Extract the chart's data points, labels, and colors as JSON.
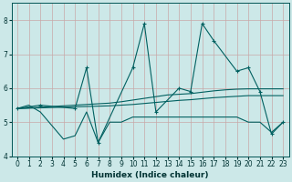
{
  "xlabel": "Humidex (Indice chaleur)",
  "bg_color": "#cce8e8",
  "grid_color": "#c8a8a8",
  "line_color": "#006060",
  "xlim": [
    -0.5,
    23.5
  ],
  "ylim": [
    4.0,
    8.5
  ],
  "yticks": [
    4,
    5,
    6,
    7,
    8
  ],
  "xticks": [
    0,
    1,
    2,
    3,
    4,
    5,
    6,
    7,
    8,
    9,
    10,
    11,
    12,
    13,
    14,
    15,
    16,
    17,
    18,
    19,
    20,
    21,
    22,
    23
  ],
  "series": {
    "line_spiky_x": [
      0,
      1,
      2,
      3,
      4,
      5,
      6,
      7,
      8,
      9,
      10,
      11,
      12,
      13,
      14,
      15,
      16,
      17,
      18,
      19,
      20,
      21,
      22,
      23
    ],
    "line_spiky_y": [
      5.4,
      5.5,
      5.3,
      4.9,
      4.5,
      4.6,
      5.3,
      4.4,
      5.0,
      5.0,
      5.15,
      5.15,
      5.15,
      5.15,
      5.15,
      5.15,
      5.15,
      5.15,
      5.15,
      5.15,
      5.0,
      5.0,
      4.7,
      5.0
    ],
    "line_trend1_x": [
      0,
      1,
      2,
      3,
      4,
      5,
      6,
      7,
      8,
      9,
      10,
      11,
      12,
      13,
      14,
      15,
      16,
      17,
      18,
      19,
      20,
      21,
      22,
      23
    ],
    "line_trend1_y": [
      5.4,
      5.42,
      5.44,
      5.46,
      5.48,
      5.5,
      5.52,
      5.54,
      5.56,
      5.6,
      5.65,
      5.7,
      5.75,
      5.8,
      5.82,
      5.84,
      5.88,
      5.92,
      5.95,
      5.97,
      5.98,
      5.98,
      5.98,
      5.98
    ],
    "line_trend2_x": [
      0,
      1,
      2,
      3,
      4,
      5,
      6,
      7,
      8,
      9,
      10,
      11,
      12,
      13,
      14,
      15,
      16,
      17,
      18,
      19,
      20,
      21,
      22,
      23
    ],
    "line_trend2_y": [
      5.4,
      5.41,
      5.42,
      5.43,
      5.44,
      5.45,
      5.46,
      5.47,
      5.48,
      5.5,
      5.52,
      5.55,
      5.58,
      5.61,
      5.64,
      5.66,
      5.69,
      5.72,
      5.74,
      5.76,
      5.78,
      5.78,
      5.78,
      5.78
    ],
    "line_upper_x": [
      0,
      2,
      5,
      6,
      7,
      10,
      11,
      12,
      14,
      15,
      16,
      17,
      19,
      20,
      21,
      22,
      23
    ],
    "line_upper_y": [
      5.4,
      5.5,
      5.4,
      6.6,
      4.4,
      6.6,
      7.9,
      5.3,
      6.0,
      5.9,
      7.9,
      7.4,
      6.5,
      6.6,
      5.9,
      4.65,
      5.0
    ]
  }
}
